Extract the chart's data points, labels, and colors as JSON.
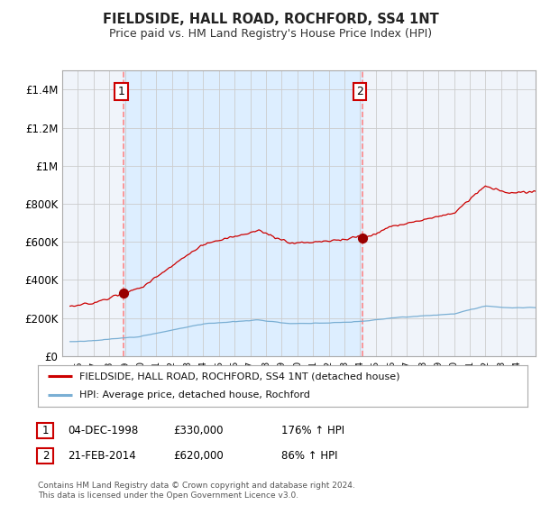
{
  "title": "FIELDSIDE, HALL ROAD, ROCHFORD, SS4 1NT",
  "subtitle": "Price paid vs. HM Land Registry's House Price Index (HPI)",
  "ylim": [
    0,
    1500000
  ],
  "yticks": [
    0,
    200000,
    400000,
    600000,
    800000,
    1000000,
    1200000,
    1400000
  ],
  "ytick_labels": [
    "£0",
    "£200K",
    "£400K",
    "£600K",
    "£800K",
    "£1M",
    "£1.2M",
    "£1.4M"
  ],
  "xlim_start": 1995.5,
  "xlim_end": 2025.2,
  "sale1_year": 1998.92,
  "sale1_price": 330000,
  "sale1_label": "1",
  "sale2_year": 2014.13,
  "sale2_price": 620000,
  "sale2_label": "2",
  "red_color": "#cc0000",
  "blue_color": "#7aafd4",
  "sale_marker_color": "#990000",
  "vline_color": "#ff8888",
  "fill_color": "#ddeeff",
  "grid_color": "#cccccc",
  "bg_color": "#f0f4fa",
  "legend_line1": "FIELDSIDE, HALL ROAD, ROCHFORD, SS4 1NT (detached house)",
  "legend_line2": "HPI: Average price, detached house, Rochford",
  "footer1": "Contains HM Land Registry data © Crown copyright and database right 2024.",
  "footer2": "This data is licensed under the Open Government Licence v3.0.",
  "table_row1": [
    "1",
    "04-DEC-1998",
    "£330,000",
    "176% ↑ HPI"
  ],
  "table_row2": [
    "2",
    "21-FEB-2014",
    "£620,000",
    "86% ↑ HPI"
  ]
}
